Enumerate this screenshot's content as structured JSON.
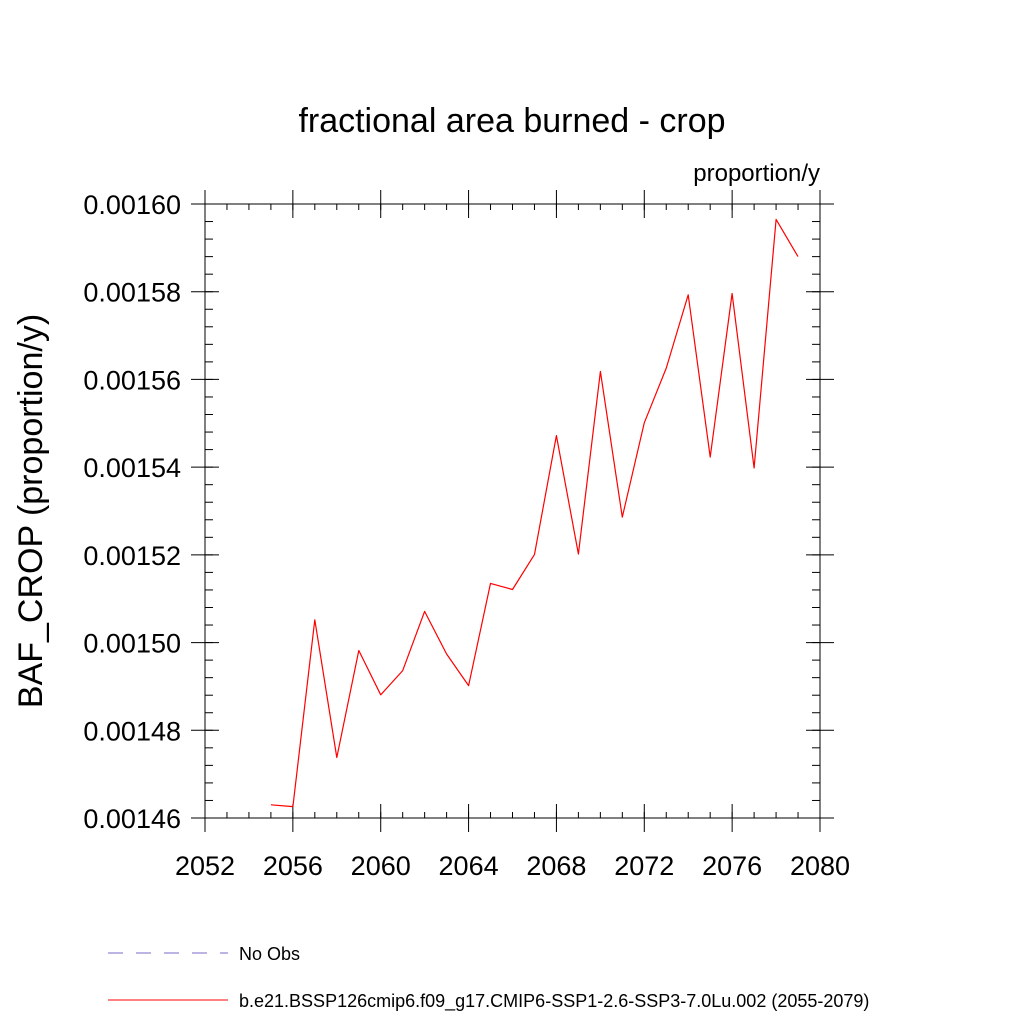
{
  "chart_data": {
    "type": "line",
    "title": "fractional area burned - crop",
    "units_label": "proportion/y",
    "ylabel": "BAF_CROP  (proportion/y)",
    "xlabel": "",
    "xlim": [
      2052,
      2080
    ],
    "ylim": [
      0.00146,
      0.0016
    ],
    "x_ticks": [
      2052,
      2056,
      2060,
      2064,
      2068,
      2072,
      2076,
      2080
    ],
    "x_tick_labels": [
      "2052",
      "2056",
      "2060",
      "2064",
      "2068",
      "2072",
      "2076",
      "2080"
    ],
    "y_ticks": [
      0.00146,
      0.00148,
      0.0015,
      0.00152,
      0.00154,
      0.00156,
      0.00158,
      0.0016
    ],
    "y_tick_labels": [
      "0.00146",
      "0.00148",
      "0.00150",
      "0.00152",
      "0.00154",
      "0.00156",
      "0.00158",
      "0.00160"
    ],
    "x_minor_step": 1,
    "y_minor_step": 4e-06,
    "grid": false,
    "legend_position": "bottom-left",
    "series": [
      {
        "name": "No Obs",
        "color": "#7b68c8",
        "dash": "dashed",
        "x": [],
        "y": []
      },
      {
        "name": "b.e21.BSSP126cmip6.f09_g17.CMIP6-SSP1-2.6-SSP3-7.0Lu.002 (2055-2079)",
        "color": "#ff0000",
        "dash": "solid",
        "x": [
          2055,
          2056,
          2057,
          2058,
          2059,
          2060,
          2061,
          2062,
          2063,
          2064,
          2065,
          2066,
          2067,
          2068,
          2069,
          2070,
          2071,
          2072,
          2073,
          2074,
          2075,
          2076,
          2077,
          2078,
          2079
        ],
        "y": [
          0.001463,
          0.0014626,
          0.0015052,
          0.0014738,
          0.0014982,
          0.0014881,
          0.0014936,
          0.0015071,
          0.0014974,
          0.0014902,
          0.0015135,
          0.0015121,
          0.0015201,
          0.0015472,
          0.0015202,
          0.0015618,
          0.0015286,
          0.0015501,
          0.0015626,
          0.0015793,
          0.0015423,
          0.0015796,
          0.0015398,
          0.0015965,
          0.001588
        ]
      }
    ]
  }
}
